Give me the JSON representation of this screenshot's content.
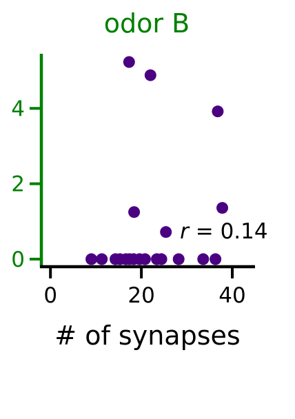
{
  "chart_data": {
    "type": "scatter",
    "title": "odor B",
    "xlabel": "# of synapses",
    "ylabel": "",
    "xlim": [
      -2,
      45
    ],
    "ylim": [
      -0.2,
      5.45
    ],
    "xticks": [
      0,
      20,
      40
    ],
    "yticks": [
      0,
      2,
      4
    ],
    "grid": false,
    "annotation": {
      "italic_part": "r",
      "rest": " = 0.14",
      "x": 28.5,
      "y": 0.55
    },
    "series": [
      {
        "points": [
          [
            9,
            0
          ],
          [
            11.3,
            0
          ],
          [
            14.3,
            0
          ],
          [
            15.3,
            0
          ],
          [
            16.6,
            0
          ],
          [
            17.4,
            0
          ],
          [
            18.3,
            0
          ],
          [
            19.6,
            0
          ],
          [
            20.8,
            0
          ],
          [
            23.4,
            0
          ],
          [
            24.4,
            0
          ],
          [
            28.2,
            0
          ],
          [
            33.6,
            0
          ],
          [
            36.3,
            0
          ],
          [
            17.3,
            5.23
          ],
          [
            22.0,
            4.88
          ],
          [
            36.8,
            3.92
          ],
          [
            18.4,
            1.25
          ],
          [
            37.8,
            1.36
          ],
          [
            25.4,
            0.72
          ]
        ]
      }
    ]
  },
  "colors": {
    "title": "#008000",
    "y_axis": "#008000",
    "x_axis": "#000000",
    "points": "#4b0082"
  }
}
